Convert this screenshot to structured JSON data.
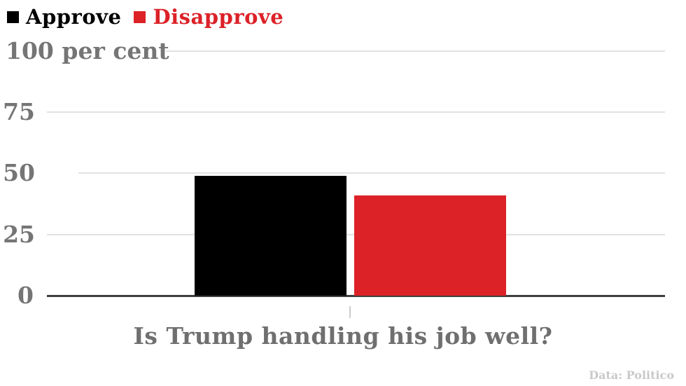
{
  "chart_data": {
    "type": "bar",
    "title": "",
    "xlabel": "Is Trump handling his job well?",
    "ylabel": "per cent",
    "ylim": [
      0,
      100
    ],
    "grid": true,
    "legend_position": "top-left",
    "categories": [
      "Is Trump handling his job well?"
    ],
    "series": [
      {
        "name": "Approve",
        "value": 49,
        "color": "#000000"
      },
      {
        "name": "Disapprove",
        "value": 41,
        "color": "#dc2127"
      }
    ],
    "yticks": [
      {
        "label": "100 per cent",
        "value": 100
      },
      {
        "label": "75",
        "value": 75
      },
      {
        "label": "50",
        "value": 50
      },
      {
        "label": "25",
        "value": 25
      },
      {
        "label": "0",
        "value": 0
      }
    ],
    "source": "Data: Politico"
  },
  "colors": {
    "approve": "#000000",
    "disapprove": "#dc2127",
    "axis_text": "#757575",
    "gridline": "#e2e2e2",
    "baseline": "#3e3e3e",
    "source_text": "#c9c9c9"
  }
}
